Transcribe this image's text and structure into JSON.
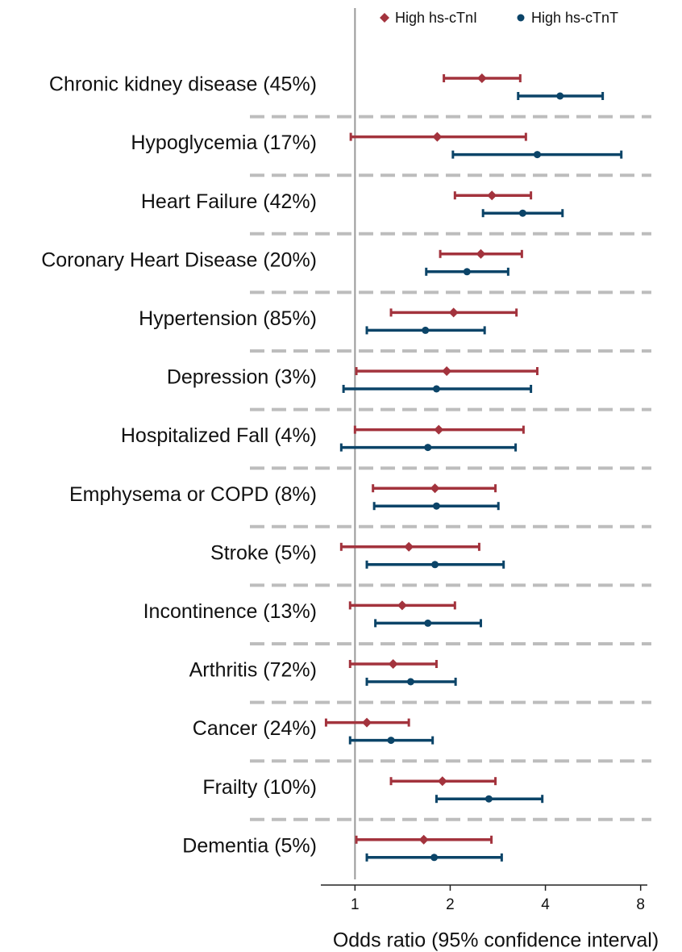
{
  "chart_data": {
    "type": "forest",
    "x_label": "Odds ratio (95% confidence interval)",
    "log_x": true,
    "xlim": [
      0.78,
      8.4
    ],
    "xticks": [
      1,
      2,
      4,
      8
    ],
    "reference_line": 1,
    "grid": false,
    "legend": "top",
    "categories": [
      "Chronic kidney disease (45%)",
      "Hypoglycemia (17%)",
      "Heart Failure (42%)",
      "Coronary Heart Disease (20%)",
      "Hypertension (85%)",
      "Depression (3%)",
      "Hospitalized Fall (4%)",
      "Emphysema or COPD (8%)",
      "Stroke (5%)",
      "Incontinence (13%)",
      "Arthritis (72%)",
      "Cancer (24%)",
      "Frailty (10%)",
      "Dementia (5%)"
    ],
    "series": [
      {
        "name": "High hs-cTnI",
        "color": "#a3333d",
        "marker": "diamond",
        "values": [
          2.52,
          1.82,
          2.71,
          2.5,
          2.05,
          1.95,
          1.84,
          1.79,
          1.48,
          1.41,
          1.32,
          1.09,
          1.89,
          1.65
        ],
        "lower": [
          1.91,
          0.97,
          2.07,
          1.86,
          1.3,
          1.01,
          1.0,
          1.14,
          0.905,
          0.965,
          0.965,
          0.81,
          1.3,
          1.01
        ],
        "upper": [
          3.33,
          3.47,
          3.6,
          3.37,
          3.24,
          3.77,
          3.41,
          2.78,
          2.47,
          2.07,
          1.81,
          1.48,
          2.78,
          2.7
        ]
      },
      {
        "name": "High hs-cTnT",
        "color": "#0b4468",
        "marker": "circle",
        "values": [
          4.45,
          3.77,
          3.39,
          2.26,
          1.67,
          1.81,
          1.7,
          1.81,
          1.79,
          1.7,
          1.5,
          1.3,
          2.65,
          1.78
        ],
        "lower": [
          3.28,
          2.04,
          2.54,
          1.68,
          1.09,
          0.92,
          0.905,
          1.15,
          1.09,
          1.16,
          1.09,
          0.965,
          1.81,
          1.09
        ],
        "upper": [
          6.07,
          6.95,
          4.53,
          3.05,
          2.57,
          3.6,
          3.22,
          2.84,
          2.95,
          2.5,
          2.08,
          1.76,
          3.91,
          2.91
        ]
      }
    ]
  }
}
